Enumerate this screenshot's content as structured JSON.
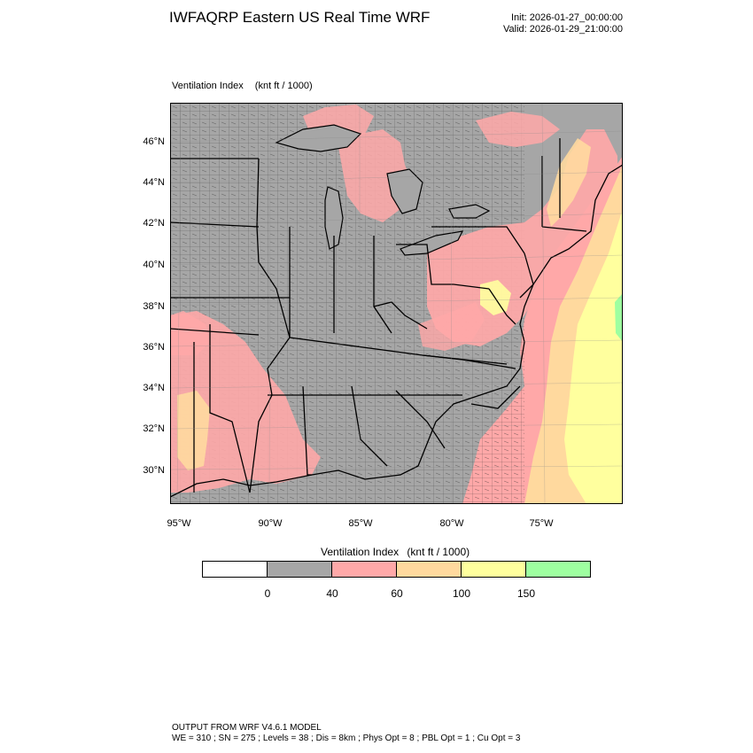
{
  "header": {
    "title": "IWFAQRP Eastern US Real Time WRF",
    "init": "Init: 2026-01-27_00:00:00",
    "valid": "Valid: 2026-01-29_21:00:00"
  },
  "map": {
    "field_name": "Ventilation Index",
    "field_units": "(knt ft / 1000)",
    "lat_labels": [
      "46°N",
      "44°N",
      "42°N",
      "40°N",
      "38°N",
      "36°N",
      "34°N",
      "32°N",
      "30°N"
    ],
    "lon_labels": [
      "95°W",
      "90°W",
      "85°W",
      "80°W",
      "75°W"
    ],
    "colors": {
      "land_default": "#a6a6a6",
      "water": "#a6a6a6"
    }
  },
  "legend": {
    "title": "Ventilation Index",
    "units": "(knt ft / 1000)",
    "colors": [
      "#ffffff",
      "#a6a6a6",
      "#ffa8a8",
      "#ffd99e",
      "#ffff9e",
      "#9effa0"
    ],
    "ticks": [
      "0",
      "40",
      "60",
      "100",
      "150"
    ]
  },
  "footer": {
    "line1": "OUTPUT FROM WRF V4.6.1 MODEL",
    "line2": "WE = 310 ; SN = 275 ; Levels = 38 ; Dis = 8km ; Phys Opt = 8 ; PBL Opt = 1 ; Cu Opt = 3"
  }
}
